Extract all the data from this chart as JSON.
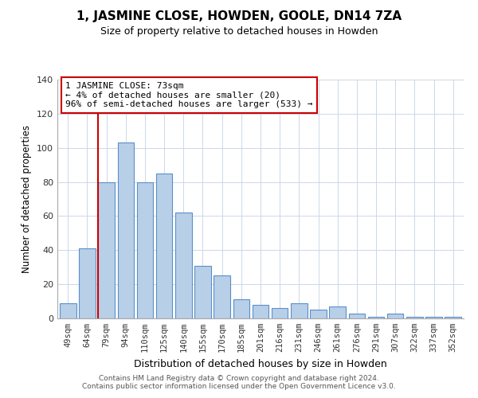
{
  "title": "1, JASMINE CLOSE, HOWDEN, GOOLE, DN14 7ZA",
  "subtitle": "Size of property relative to detached houses in Howden",
  "xlabel": "Distribution of detached houses by size in Howden",
  "ylabel": "Number of detached properties",
  "bar_labels": [
    "49sqm",
    "64sqm",
    "79sqm",
    "94sqm",
    "110sqm",
    "125sqm",
    "140sqm",
    "155sqm",
    "170sqm",
    "185sqm",
    "201sqm",
    "216sqm",
    "231sqm",
    "246sqm",
    "261sqm",
    "276sqm",
    "291sqm",
    "307sqm",
    "322sqm",
    "337sqm",
    "352sqm"
  ],
  "bar_values": [
    9,
    41,
    80,
    103,
    80,
    85,
    62,
    31,
    25,
    11,
    8,
    6,
    9,
    5,
    7,
    3,
    1,
    3,
    1,
    1,
    1
  ],
  "bar_color": "#b8cfe8",
  "bar_edge_color": "#5b8fc9",
  "vline_color": "#cc0000",
  "annotation_text": "1 JASMINE CLOSE: 73sqm\n← 4% of detached houses are smaller (20)\n96% of semi-detached houses are larger (533) →",
  "annotation_box_color": "#ffffff",
  "annotation_box_edge_color": "#cc0000",
  "ylim": [
    0,
    140
  ],
  "yticks": [
    0,
    20,
    40,
    60,
    80,
    100,
    120,
    140
  ],
  "footer_text": "Contains HM Land Registry data © Crown copyright and database right 2024.\nContains public sector information licensed under the Open Government Licence v3.0.",
  "background_color": "#ffffff",
  "grid_color": "#ccd8e8"
}
